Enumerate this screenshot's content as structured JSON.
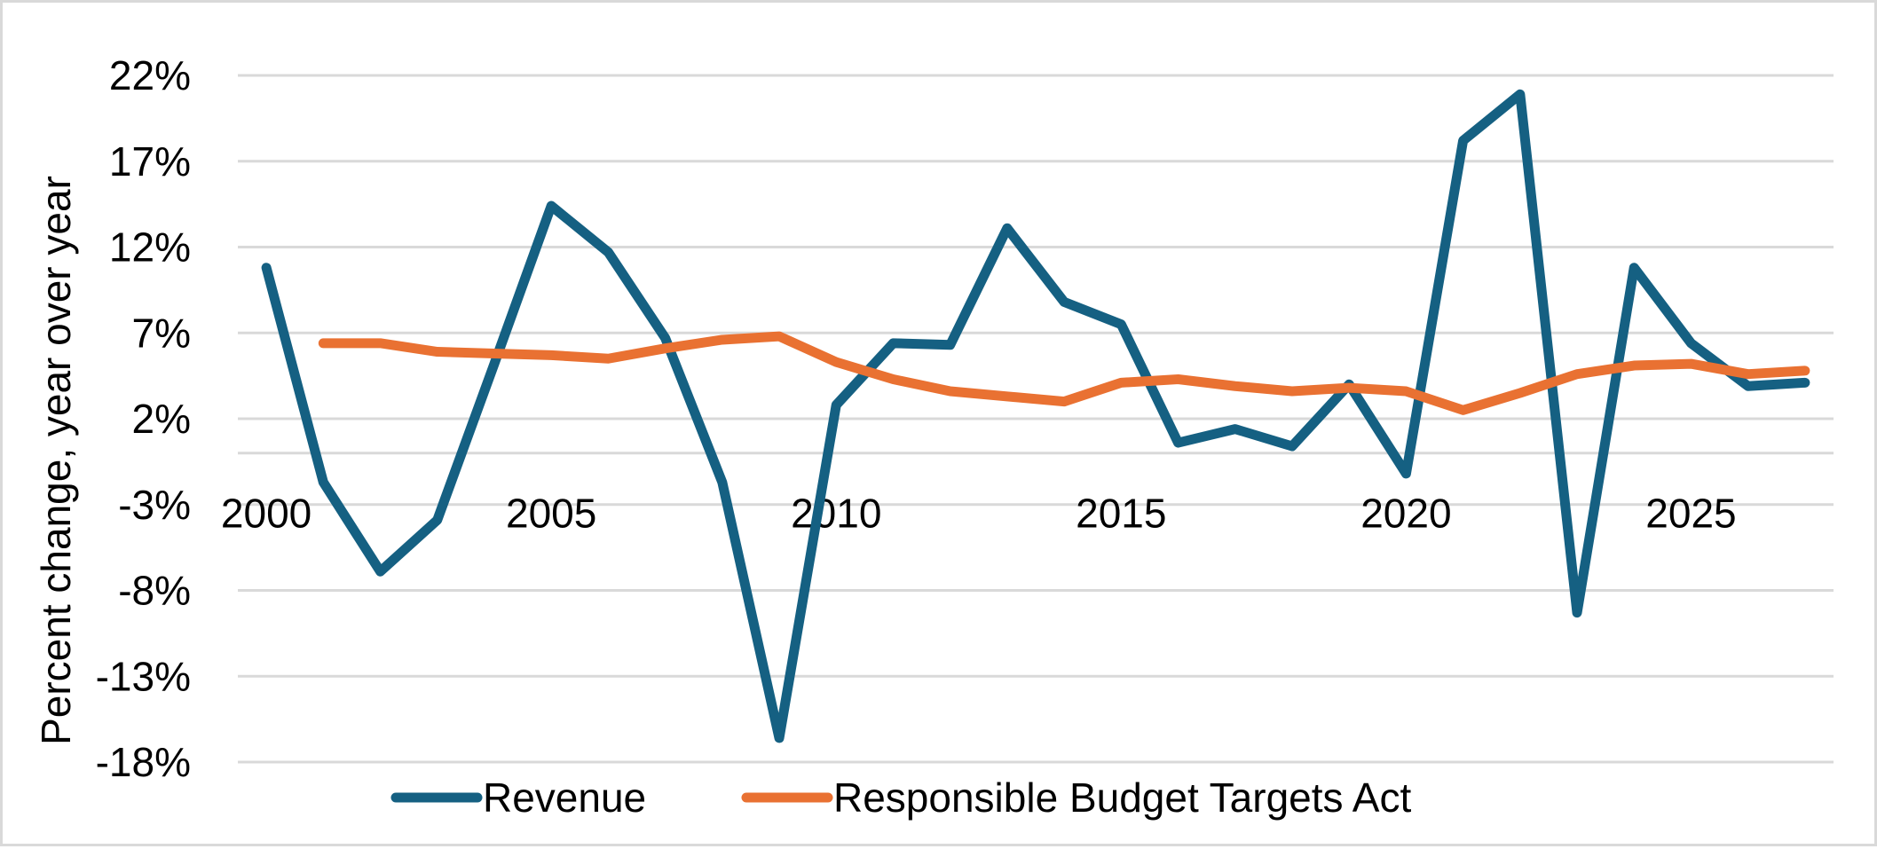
{
  "chart_data": {
    "type": "line",
    "title": "",
    "xlabel": "",
    "ylabel": "Percent change, year over year",
    "ylim": [
      -18,
      22
    ],
    "y_ticks": [
      22,
      17,
      12,
      7,
      2,
      -3,
      -8,
      -13,
      -18
    ],
    "y_tick_labels": [
      "22%",
      "17%",
      "12%",
      "7%",
      "2%",
      "-3%",
      "-8%",
      "-13%",
      "-18%"
    ],
    "x": [
      2000,
      2001,
      2002,
      2003,
      2004,
      2005,
      2006,
      2007,
      2008,
      2009,
      2010,
      2011,
      2012,
      2013,
      2014,
      2015,
      2016,
      2017,
      2018,
      2019,
      2020,
      2021,
      2022,
      2023,
      2024,
      2025,
      2026,
      2027
    ],
    "x_tick_labels": [
      {
        "year": 2000,
        "label": "2000"
      },
      {
        "year": 2005,
        "label": "2005"
      },
      {
        "year": 2010,
        "label": "2010"
      },
      {
        "year": 2015,
        "label": "2015"
      },
      {
        "year": 2020,
        "label": "2020"
      },
      {
        "year": 2025,
        "label": "2025"
      }
    ],
    "grid": true,
    "legend_position": "bottom",
    "series": [
      {
        "name": "Revenue",
        "color": "#156082",
        "values": [
          10.8,
          -1.7,
          -6.9,
          -3.9,
          5.2,
          14.4,
          11.7,
          6.7,
          -1.7,
          -16.6,
          2.8,
          6.4,
          6.3,
          13.1,
          8.8,
          7.5,
          0.6,
          1.4,
          0.4,
          4.0,
          -1.2,
          18.2,
          20.9,
          -9.3,
          10.8,
          6.4,
          3.9,
          4.1
        ]
      },
      {
        "name": "Responsible Budget Targets Act",
        "color": "#E97132",
        "values": [
          null,
          6.4,
          6.4,
          5.9,
          5.8,
          5.7,
          5.5,
          6.1,
          6.6,
          6.8,
          5.3,
          4.3,
          3.6,
          3.3,
          3.0,
          4.1,
          4.3,
          3.9,
          3.6,
          3.8,
          3.6,
          2.5,
          3.5,
          4.6,
          5.1,
          5.2,
          4.6,
          4.8
        ]
      }
    ]
  }
}
